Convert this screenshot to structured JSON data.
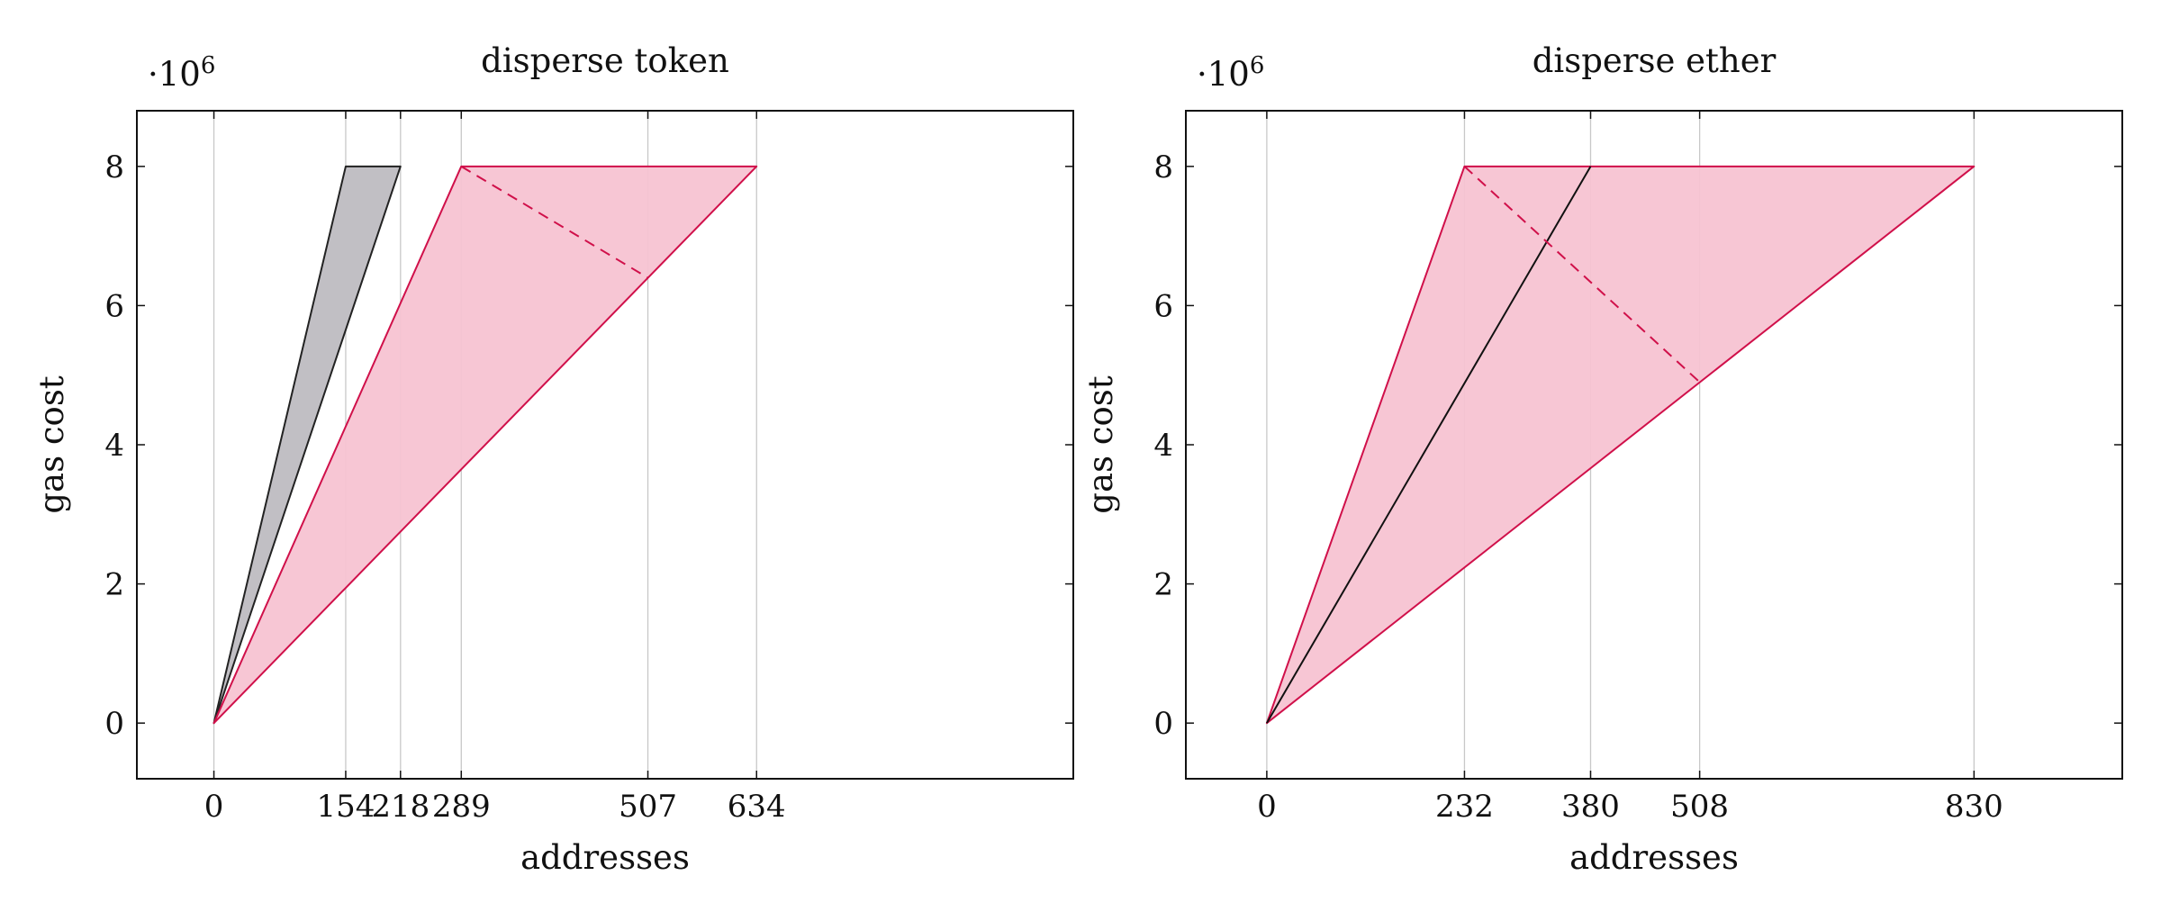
{
  "chart_data": [
    {
      "type": "area",
      "title": "disperse token",
      "xlabel": "addresses",
      "ylabel": "gas cost",
      "y_multiplier": {
        "base": "·10",
        "exponent": "6"
      },
      "xlim": [
        -90,
        1004
      ],
      "ylim": [
        -0.8,
        8.8
      ],
      "xticks": [
        0,
        154,
        218,
        289,
        507,
        634
      ],
      "yticks": [
        0,
        2,
        4,
        6,
        8
      ],
      "grid": "vertical",
      "colors": {
        "gray_fill": "#c1bfc4",
        "gray_stroke": "#222222",
        "red_fill": "#f7c3d2",
        "red_stroke": "#d0104a",
        "grid": "#c8c8c8",
        "frame": "#111111"
      },
      "series": [
        {
          "style": "gray",
          "points": [
            [
              0,
              0
            ],
            [
              154,
              8
            ],
            [
              218,
              8
            ]
          ]
        },
        {
          "style": "red",
          "points": [
            [
              0,
              0
            ],
            [
              289,
              8
            ],
            [
              634,
              8
            ]
          ]
        },
        {
          "style": "red-dashed",
          "points": [
            [
              289,
              8
            ],
            [
              507,
              6.4
            ]
          ]
        }
      ]
    },
    {
      "type": "area",
      "title": "disperse ether",
      "xlabel": "addresses",
      "ylabel": "gas cost",
      "y_multiplier": {
        "base": "·10",
        "exponent": "6"
      },
      "xlim": [
        -95,
        1004
      ],
      "ylim": [
        -0.8,
        8.8
      ],
      "xticks": [
        0,
        232,
        380,
        508,
        830
      ],
      "yticks": [
        0,
        2,
        4,
        6,
        8
      ],
      "grid": "vertical",
      "colors": {
        "red_fill": "#f7c3d2",
        "red_stroke": "#d0104a",
        "black_line": "#111111",
        "grid": "#c8c8c8",
        "frame": "#111111"
      },
      "series": [
        {
          "style": "red",
          "points": [
            [
              0,
              0
            ],
            [
              232,
              8
            ],
            [
              830,
              8
            ]
          ]
        },
        {
          "style": "black-line",
          "points": [
            [
              0,
              0
            ],
            [
              380,
              8
            ]
          ]
        },
        {
          "style": "red-dashed",
          "points": [
            [
              232,
              8
            ],
            [
              508,
              4.9
            ]
          ]
        }
      ]
    }
  ]
}
